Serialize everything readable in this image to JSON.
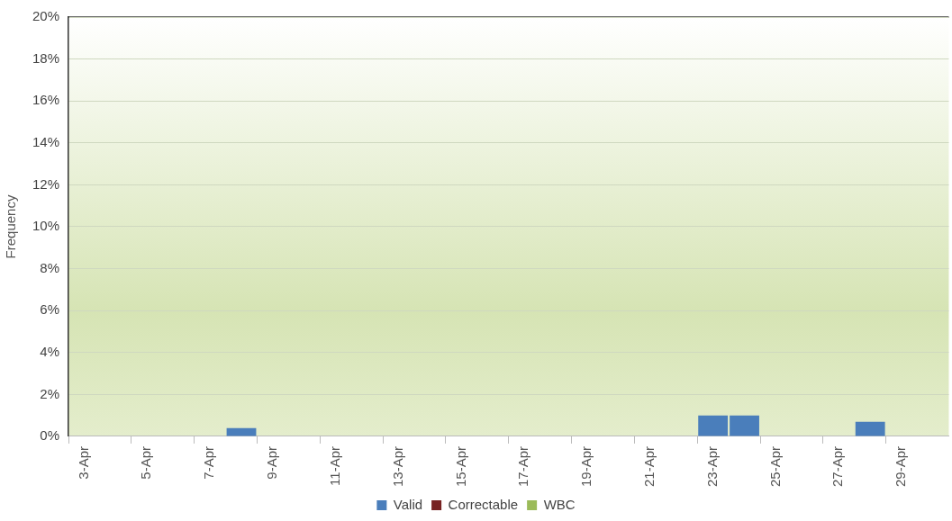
{
  "chart_data": {
    "type": "bar",
    "ylabel": "Frequency",
    "stacked": true,
    "categories": [
      "3-Apr",
      null,
      "5-Apr",
      null,
      "7-Apr",
      null,
      "9-Apr",
      null,
      "11-Apr",
      null,
      "13-Apr",
      null,
      "15-Apr",
      null,
      "17-Apr",
      null,
      "19-Apr",
      null,
      "21-Apr",
      null,
      "23-Apr",
      null,
      "25-Apr",
      null,
      "27-Apr",
      null,
      "29-Apr",
      null
    ],
    "series": [
      {
        "name": "Valid",
        "color": "#4a7ebb",
        "values": [
          0,
          0,
          0,
          0,
          0,
          0.4,
          0,
          0,
          0,
          0,
          0,
          0,
          0,
          0,
          0,
          0,
          0,
          0,
          0,
          0,
          1.0,
          1.0,
          0,
          0,
          0,
          0.7,
          0,
          0
        ]
      },
      {
        "name": "Correctable",
        "color": "#772222",
        "values": [
          0,
          0,
          0,
          0,
          0,
          0,
          0,
          0,
          0,
          0,
          0,
          0,
          0,
          0,
          0,
          0,
          0,
          0,
          0,
          0,
          0,
          0,
          0,
          0,
          0,
          0,
          0,
          0
        ]
      },
      {
        "name": "WBC",
        "color": "#9bbb59",
        "values": [
          0,
          0,
          0,
          0,
          0,
          0,
          0,
          0,
          0,
          0,
          0,
          0,
          0,
          0,
          0,
          0,
          0,
          0,
          0,
          0,
          0,
          0,
          0,
          0,
          0,
          0,
          0,
          0
        ]
      }
    ],
    "ylim": [
      0,
      20
    ],
    "yticks": [
      {
        "value": 0,
        "label": "0%"
      },
      {
        "value": 2,
        "label": "2%"
      },
      {
        "value": 4,
        "label": "4%"
      },
      {
        "value": 6,
        "label": "6%"
      },
      {
        "value": 8,
        "label": "8%"
      },
      {
        "value": 10,
        "label": "10%"
      },
      {
        "value": 12,
        "label": "12%"
      },
      {
        "value": 14,
        "label": "14%"
      },
      {
        "value": 16,
        "label": "16%"
      },
      {
        "value": 18,
        "label": "18%"
      },
      {
        "value": 20,
        "label": "20%"
      }
    ],
    "grid": "y",
    "legend": "bottom"
  }
}
